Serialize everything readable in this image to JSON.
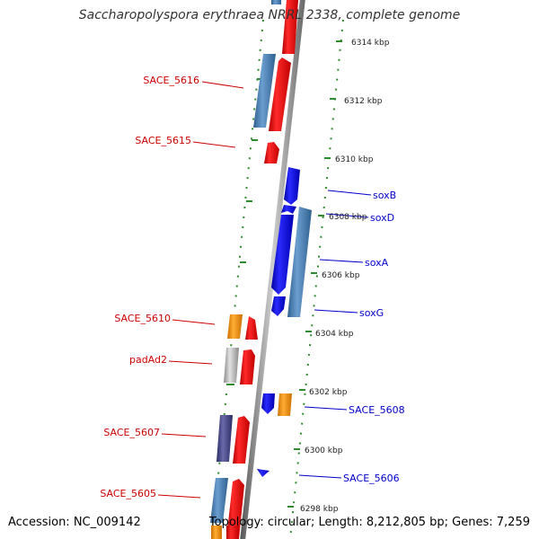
{
  "title": "Saccharopolyspora erythraea NRRL 2338, complete genome",
  "footer": {
    "accession": "Accession: NC_009142",
    "topology": "Topology: circular; Length: 8,212,805 bp; Genes: 7,259"
  },
  "colors": {
    "backbone": "#888888",
    "ticks": "#2e8b2e",
    "label_red": "#cc0000",
    "label_blue": "#0000cc",
    "red_gene": "#ee0000",
    "blue_gene": "#0000ee",
    "steelblue_gene": "#4a7fb5",
    "orange_gene": "#ff9900",
    "gray_gene": "#bbbbbb",
    "purple_gene": "#4a4a88"
  },
  "kbp_labels": [
    {
      "text": "6314 kbp"
    },
    {
      "text": "6312 kbp"
    },
    {
      "text": "6310 kbp"
    },
    {
      "text": "6308 kbp"
    },
    {
      "text": "6306 kbp"
    },
    {
      "text": "6304 kbp"
    },
    {
      "text": "6302 kbp"
    },
    {
      "text": "6300 kbp"
    },
    {
      "text": "6298 kbp"
    }
  ],
  "gene_labels": {
    "left": [
      {
        "text": "SACE_5616"
      },
      {
        "text": "SACE_5615"
      },
      {
        "text": "SACE_5610"
      },
      {
        "text": "padAd2"
      },
      {
        "text": "SACE_5607"
      },
      {
        "text": "SACE_5605"
      }
    ],
    "right": [
      {
        "text": "soxB"
      },
      {
        "text": "soxD"
      },
      {
        "text": "soxA"
      },
      {
        "text": "soxG"
      },
      {
        "text": "SACE_5608"
      },
      {
        "text": "SACE_5606"
      }
    ]
  }
}
